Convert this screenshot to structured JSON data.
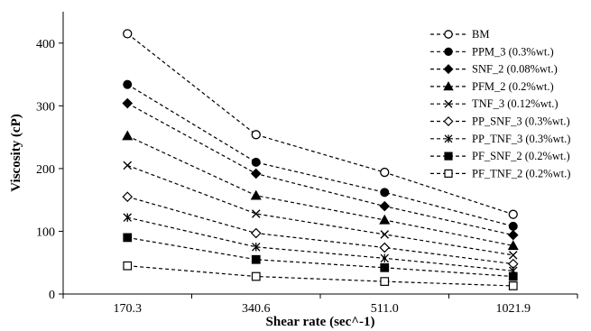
{
  "chart_data": {
    "type": "line",
    "xlabel": "Shear rate (sec^-1)",
    "ylabel": "Viscosity (cP)",
    "categories": [
      "170.3",
      "340.6",
      "511.0",
      "1021.9"
    ],
    "ylim": [
      0,
      450
    ],
    "yticks": [
      0,
      100,
      200,
      300,
      400
    ],
    "grid": false,
    "legend_position": "top-right",
    "line_style": "dashed",
    "color": "#000000",
    "series": [
      {
        "name": "BM",
        "marker": "circle-open",
        "values": [
          415,
          254,
          194,
          127
        ]
      },
      {
        "name": "PPM_3 (0.3%wt.)",
        "marker": "circle-filled",
        "values": [
          334,
          210,
          162,
          108
        ]
      },
      {
        "name": "SNF_2 (0.08%wt.)",
        "marker": "diamond-filled",
        "values": [
          304,
          192,
          140,
          94
        ]
      },
      {
        "name": "PFM_2 (0.2%wt.)",
        "marker": "triangle-filled",
        "values": [
          252,
          157,
          118,
          77
        ]
      },
      {
        "name": "TNF_3 (0.12%wt.)",
        "marker": "x",
        "values": [
          205,
          128,
          95,
          62
        ]
      },
      {
        "name": "PP_SNF_3 (0.3%wt.)",
        "marker": "diamond-open",
        "values": [
          155,
          97,
          74,
          48
        ]
      },
      {
        "name": "PP_TNF_3 (0.3%wt.)",
        "marker": "asterisk",
        "values": [
          122,
          75,
          57,
          37
        ]
      },
      {
        "name": "PF_SNF_2 (0.2%wt.)",
        "marker": "square-filled",
        "values": [
          90,
          55,
          42,
          28
        ]
      },
      {
        "name": "PF_TNF_2 (0.2%wt.)",
        "marker": "square-open",
        "values": [
          45,
          28,
          20,
          13
        ]
      }
    ]
  }
}
